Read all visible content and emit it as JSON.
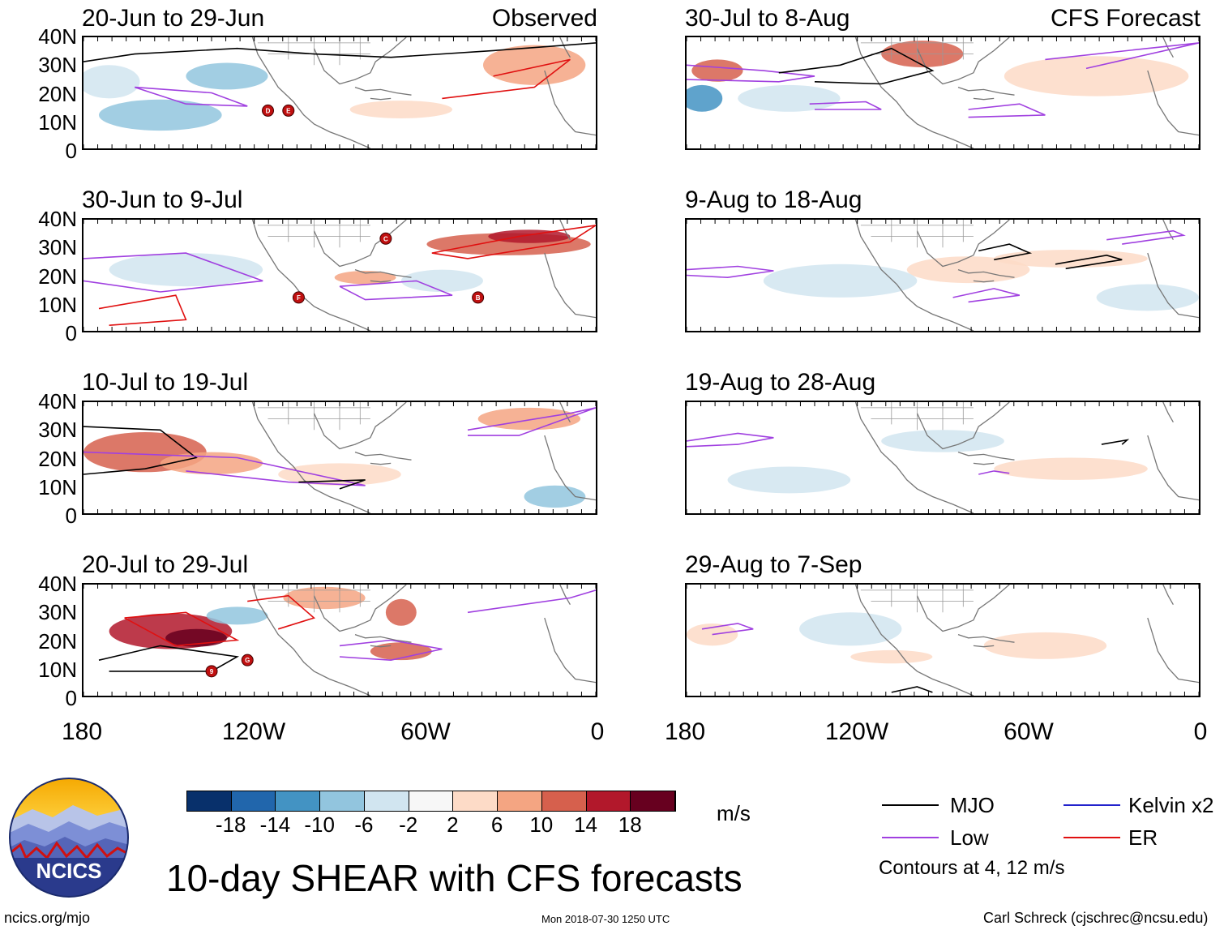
{
  "chart_data": {
    "type": "heatmap",
    "title": "10-day SHEAR with CFS forecasts",
    "units": "m/s",
    "y_ticks": [
      "40N",
      "30N",
      "20N",
      "10N",
      "0"
    ],
    "x_ticks": [
      "180",
      "120W",
      "60W",
      "0"
    ],
    "observed_label": "Observed",
    "forecast_label": "CFS Forecast",
    "panels": [
      {
        "period": "20-Jun to 29-Jun",
        "kind": "Observed",
        "storms": [
          "D",
          "E"
        ]
      },
      {
        "period": "30-Jun to 9-Jul",
        "kind": "Observed",
        "storms": [
          "C",
          "F",
          "B"
        ]
      },
      {
        "period": "10-Jul to 19-Jul",
        "kind": "Observed",
        "storms": []
      },
      {
        "period": "20-Jul to 29-Jul",
        "kind": "Observed",
        "storms": [
          "9",
          "G"
        ]
      },
      {
        "period": "30-Jul to 8-Aug",
        "kind": "CFS Forecast",
        "storms": []
      },
      {
        "period": "9-Aug to 18-Aug",
        "kind": "CFS Forecast",
        "storms": []
      },
      {
        "period": "19-Aug to 28-Aug",
        "kind": "CFS Forecast",
        "storms": []
      },
      {
        "period": "29-Aug to 7-Sep",
        "kind": "CFS Forecast",
        "storms": []
      }
    ],
    "colorbar": {
      "ticks": [
        "-18",
        "-14",
        "-10",
        "-6",
        "-2",
        "2",
        "6",
        "10",
        "14",
        "18"
      ],
      "colors": [
        "#08306b",
        "#2166ac",
        "#4393c3",
        "#92c5de",
        "#d1e5f0",
        "#f7f7f7",
        "#fddbc7",
        "#f4a582",
        "#d6604d",
        "#b2182b",
        "#67001f"
      ]
    },
    "legend": [
      {
        "label": "MJO",
        "color": "#000000"
      },
      {
        "label": "Kelvin x2",
        "color": "#2222cc"
      },
      {
        "label": "Low",
        "color": "#a040e0"
      },
      {
        "label": "ER",
        "color": "#e01010"
      }
    ],
    "contour_note": "Contours at 4, 12 m/s"
  },
  "footer": {
    "logo_text": "NCICS",
    "site": "ncics.org/mjo",
    "timestamp": "Mon 2018-07-30 1250 UTC",
    "credit": "Carl Schreck (cjschrec@ncsu.edu)"
  }
}
